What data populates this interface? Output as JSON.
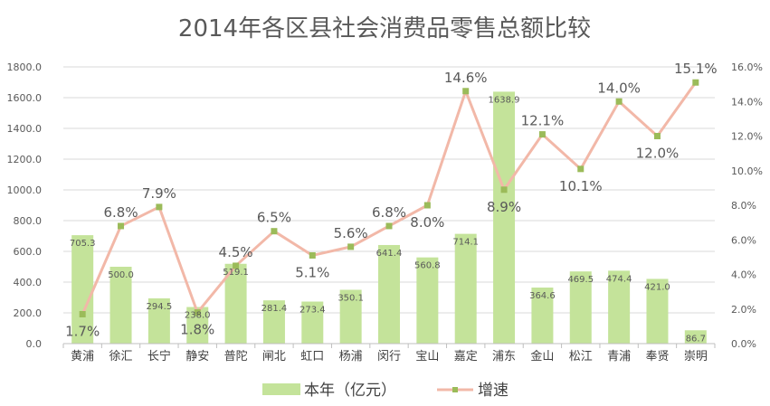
{
  "chart_data": {
    "type": "bar",
    "title": "2014年各区县社会消费品零售总额比较",
    "categories": [
      "黄浦",
      "徐汇",
      "长宁",
      "静安",
      "普陀",
      "闸北",
      "虹口",
      "杨浦",
      "闵行",
      "宝山",
      "嘉定",
      "浦东",
      "金山",
      "松江",
      "青浦",
      "奉贤",
      "崇明"
    ],
    "series": [
      {
        "name": "本年（亿元）",
        "kind": "bar",
        "axis": "left",
        "color": "#c4e39a",
        "values": [
          705.3,
          500.0,
          294.5,
          238.0,
          519.1,
          281.4,
          273.4,
          350.1,
          641.4,
          560.8,
          714.1,
          1638.9,
          364.6,
          469.5,
          474.4,
          421.0,
          86.7
        ],
        "labels": [
          "705.3",
          "500.0",
          "294.5",
          "238.0",
          "519.1",
          "281.4",
          "273.4",
          "350.1",
          "641.4",
          "560.8",
          "714.1",
          "1638.9",
          "364.6",
          "469.5",
          "474.4",
          "421.0",
          "86.7"
        ]
      },
      {
        "name": "增速",
        "kind": "line",
        "axis": "right",
        "color": "#f2b8a8",
        "marker_color": "#9bbb59",
        "values": [
          1.7,
          6.8,
          7.9,
          1.8,
          4.5,
          6.5,
          5.1,
          5.6,
          6.8,
          8.0,
          14.6,
          8.9,
          12.1,
          10.1,
          14.0,
          12.0,
          15.1
        ],
        "labels": [
          "1.7%",
          "6.8%",
          "7.9%",
          "1.8%",
          "4.5%",
          "6.5%",
          "5.1%",
          "5.6%",
          "6.8%",
          "8.0%",
          "14.6%",
          "8.9%",
          "12.1%",
          "10.1%",
          "14.0%",
          "12.0%",
          "15.1%"
        ]
      }
    ],
    "ylim": [
      0,
      1800
    ],
    "y_ticks": [
      "0.0",
      "200.0",
      "400.0",
      "600.0",
      "800.0",
      "1000.0",
      "1200.0",
      "1400.0",
      "1600.0",
      "1800.0"
    ],
    "y2lim": [
      0,
      16
    ],
    "y2_ticks": [
      "0.0%",
      "2.0%",
      "4.0%",
      "6.0%",
      "8.0%",
      "10.0%",
      "12.0%",
      "14.0%",
      "16.0%"
    ],
    "grid": true,
    "legend_position": "bottom"
  }
}
